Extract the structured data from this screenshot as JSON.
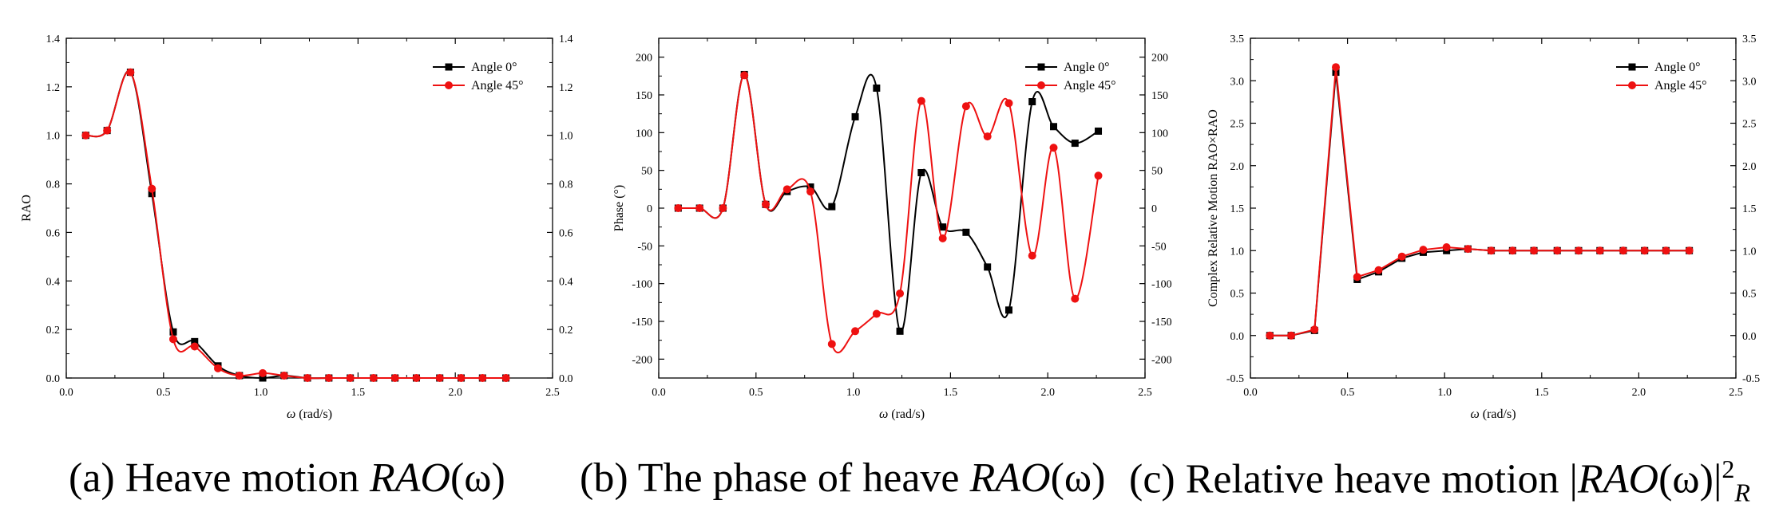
{
  "colors": {
    "angle0": "#000000",
    "angle45": "#ee1111"
  },
  "captions": [
    {
      "prefix": "(a) Heave motion ",
      "math": "RAO",
      "rest": "(ω)",
      "sup": "",
      "sub": ""
    },
    {
      "prefix": "(b) The phase of heave ",
      "math": "RAO",
      "rest": "(ω)",
      "sup": "",
      "sub": ""
    },
    {
      "prefix": "(c) Relative heave motion |",
      "math": "RAO",
      "rest": "(ω)|",
      "sup": "2",
      "sub": "R"
    }
  ],
  "chart_data": [
    {
      "type": "line",
      "title": "",
      "xlabel_italic": "ω",
      "xlabel_rest": " (rad/s)",
      "ylabel": "RAO",
      "xlim": [
        0.0,
        2.5
      ],
      "ylim": [
        0.0,
        1.4
      ],
      "xticks": [
        "0.0",
        "0.5",
        "1.0",
        "1.5",
        "2.0",
        "2.5"
      ],
      "yticks": [
        "0.0",
        "0.2",
        "0.4",
        "0.6",
        "0.8",
        "1.0",
        "1.2",
        "1.4"
      ],
      "grid": false,
      "legend": "top-right",
      "series": [
        {
          "name": "Angle 0°",
          "marker": "square",
          "x": [
            0.1,
            0.21,
            0.33,
            0.44,
            0.55,
            0.66,
            0.78,
            0.89,
            1.01,
            1.12,
            1.24,
            1.35,
            1.46,
            1.58,
            1.69,
            1.8,
            1.92,
            2.03,
            2.14,
            2.26
          ],
          "y": [
            1.0,
            1.02,
            1.26,
            0.76,
            0.19,
            0.15,
            0.05,
            0.01,
            0.0,
            0.01,
            0.0,
            0.0,
            0.0,
            0.0,
            0.0,
            0.0,
            0.0,
            0.0,
            0.0,
            0.0
          ]
        },
        {
          "name": "Angle 45°",
          "marker": "circle",
          "x": [
            0.1,
            0.21,
            0.33,
            0.44,
            0.55,
            0.66,
            0.78,
            0.89,
            1.01,
            1.12,
            1.24,
            1.35,
            1.46,
            1.58,
            1.69,
            1.8,
            1.92,
            2.03,
            2.14,
            2.26
          ],
          "y": [
            1.0,
            1.02,
            1.26,
            0.78,
            0.16,
            0.13,
            0.04,
            0.01,
            0.02,
            0.01,
            0.0,
            0.0,
            0.0,
            0.0,
            0.0,
            0.0,
            0.0,
            0.0,
            0.0,
            0.0
          ]
        }
      ]
    },
    {
      "type": "line",
      "title": "",
      "xlabel_italic": "ω",
      "xlabel_rest": " (rad/s)",
      "ylabel": "Phase (°)",
      "xlim": [
        0.0,
        2.5
      ],
      "ylim": [
        -225,
        225
      ],
      "xticks": [
        "0.0",
        "0.5",
        "1.0",
        "1.5",
        "2.0",
        "2.5"
      ],
      "yticks": [
        "-200",
        "-150",
        "-100",
        "-50",
        "0",
        "50",
        "100",
        "150",
        "200"
      ],
      "grid": false,
      "legend": "top-right",
      "series": [
        {
          "name": "Angle 0°",
          "marker": "square",
          "x": [
            0.1,
            0.21,
            0.33,
            0.44,
            0.55,
            0.66,
            0.78,
            0.89,
            1.01,
            1.12,
            1.24,
            1.35,
            1.46,
            1.58,
            1.69,
            1.8,
            1.92,
            2.03,
            2.14,
            2.26
          ],
          "y": [
            0,
            0,
            0,
            177,
            5,
            22,
            28,
            2,
            121,
            159,
            -163,
            47,
            -25,
            -32,
            -78,
            -135,
            141,
            108,
            86,
            102
          ]
        },
        {
          "name": "Angle 45°",
          "marker": "circle",
          "x": [
            0.1,
            0.21,
            0.33,
            0.44,
            0.55,
            0.66,
            0.78,
            0.89,
            1.01,
            1.12,
            1.24,
            1.35,
            1.46,
            1.58,
            1.69,
            1.8,
            1.92,
            2.03,
            2.14,
            2.26
          ],
          "y": [
            0,
            0,
            0,
            176,
            5,
            25,
            22,
            -180,
            -163,
            -140,
            -113,
            142,
            -40,
            135,
            95,
            139,
            -63,
            80,
            -120,
            43
          ]
        }
      ]
    },
    {
      "type": "line",
      "title": "",
      "xlabel_italic": "ω",
      "xlabel_rest": " (rad/s)",
      "ylabel": "Complex Relative Motion RAO×RAO",
      "xlim": [
        0.0,
        2.5
      ],
      "ylim": [
        -0.5,
        3.5
      ],
      "xticks": [
        "0.0",
        "0.5",
        "1.0",
        "1.5",
        "2.0",
        "2.5"
      ],
      "yticks": [
        "-0.5",
        "0.0",
        "0.5",
        "1.0",
        "1.5",
        "2.0",
        "2.5",
        "3.0",
        "3.5"
      ],
      "grid": false,
      "legend": "top-right",
      "series": [
        {
          "name": "Angle 0°",
          "marker": "square",
          "x": [
            0.1,
            0.21,
            0.33,
            0.44,
            0.55,
            0.66,
            0.78,
            0.89,
            1.01,
            1.12,
            1.24,
            1.35,
            1.46,
            1.58,
            1.69,
            1.8,
            1.92,
            2.03,
            2.14,
            2.26
          ],
          "y": [
            0.0,
            0.0,
            0.06,
            3.1,
            0.66,
            0.75,
            0.91,
            0.98,
            1.0,
            1.02,
            1.0,
            1.0,
            1.0,
            1.0,
            1.0,
            1.0,
            1.0,
            1.0,
            1.0,
            1.0
          ]
        },
        {
          "name": "Angle 45°",
          "marker": "circle",
          "x": [
            0.1,
            0.21,
            0.33,
            0.44,
            0.55,
            0.66,
            0.78,
            0.89,
            1.01,
            1.12,
            1.24,
            1.35,
            1.46,
            1.58,
            1.69,
            1.8,
            1.92,
            2.03,
            2.14,
            2.26
          ],
          "y": [
            0.0,
            0.0,
            0.07,
            3.16,
            0.69,
            0.77,
            0.93,
            1.01,
            1.04,
            1.02,
            1.0,
            1.0,
            1.0,
            1.0,
            1.0,
            1.0,
            1.0,
            1.0,
            1.0,
            1.0
          ]
        }
      ]
    }
  ]
}
